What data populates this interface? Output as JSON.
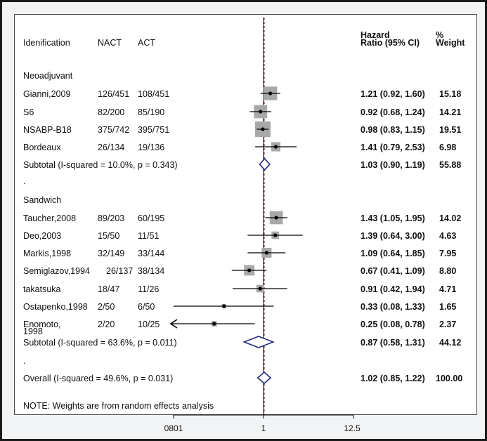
{
  "headers": {
    "study": "Idenification",
    "nact": "NACT",
    "act": "ACT",
    "hr_line1": "Hazard",
    "hr_line2": "Ratio (95% CI)",
    "w_line1": "%",
    "w_line2": "Weight"
  },
  "groups": {
    "neo": "Neoadjuvant",
    "sand": "Sandwich"
  },
  "footnote": "NOTE: Weights are from random effects analysis",
  "subgroup_markers": {
    "neo": ".",
    "sand": "."
  },
  "colors": {
    "point": "#000000",
    "box": "#a8a8a8",
    "diamond": "#1f2a7a",
    "ref": "#7a1f1f"
  },
  "chart_data": {
    "type": "forest",
    "title": "",
    "xscale": "log",
    "xlim": [
      0.0801,
      12.5
    ],
    "xticks": [
      "0801",
      "1",
      "12.5"
    ],
    "reference_line": 1,
    "rows": [
      {
        "study": "Gianni,2009",
        "nact": "126/451",
        "act": "108/451",
        "hr": 1.21,
        "lo": 0.92,
        "hi": 1.6,
        "ci_text": "1.21 (0.92, 1.60)",
        "weight": 15.18,
        "weight_text": "15.18",
        "group": "Neoadjuvant"
      },
      {
        "study": "S6",
        "nact": "82/200",
        "act": "85/190",
        "hr": 0.92,
        "lo": 0.68,
        "hi": 1.24,
        "ci_text": "0.92 (0.68, 1.24)",
        "weight": 14.21,
        "weight_text": "14.21",
        "group": "Neoadjuvant"
      },
      {
        "study": "NSABP-B18",
        "nact": "375/742",
        "act": "395/751",
        "hr": 0.98,
        "lo": 0.83,
        "hi": 1.15,
        "ci_text": "0.98 (0.83, 1.15)",
        "weight": 19.51,
        "weight_text": "19.51",
        "group": "Neoadjuvant"
      },
      {
        "study": "Bordeaux",
        "nact": "26/134",
        "act": "19/136",
        "hr": 1.41,
        "lo": 0.79,
        "hi": 2.53,
        "ci_text": "1.41 (0.79, 2.53)",
        "weight": 6.98,
        "weight_text": "6.98",
        "group": "Neoadjuvant"
      },
      {
        "study": "Taucher,2008",
        "nact": "89/203",
        "act": "60/195",
        "hr": 1.43,
        "lo": 1.05,
        "hi": 1.95,
        "ci_text": "1.43 (1.05, 1.95)",
        "weight": 14.02,
        "weight_text": "14.02",
        "group": "Sandwich"
      },
      {
        "study": "Deo,2003",
        "nact": "15/50",
        "act": "11/51",
        "hr": 1.39,
        "lo": 0.64,
        "hi": 3.0,
        "ci_text": "1.39 (0.64, 3.00)",
        "weight": 4.63,
        "weight_text": "4.63",
        "group": "Sandwich"
      },
      {
        "study": "Markis,1998",
        "nact": "32/149",
        "act": "33/144",
        "hr": 1.09,
        "lo": 0.64,
        "hi": 1.85,
        "ci_text": "1.09 (0.64, 1.85)",
        "weight": 7.95,
        "weight_text": "7.95",
        "group": "Sandwich"
      },
      {
        "study": "Semiglazov,1994",
        "nact": "26/137",
        "act": "38/134",
        "hr": 0.67,
        "lo": 0.41,
        "hi": 1.09,
        "ci_text": "0.67 (0.41, 1.09)",
        "weight": 8.8,
        "weight_text": "8.80",
        "group": "Sandwich"
      },
      {
        "study": "takatsuka",
        "nact": "18/47",
        "act": "11/26",
        "hr": 0.91,
        "lo": 0.42,
        "hi": 1.94,
        "ci_text": "0.91 (0.42, 1.94)",
        "weight": 4.71,
        "weight_text": "4.71",
        "group": "Sandwich"
      },
      {
        "study": "Ostapenko,1998",
        "nact": "2/50",
        "act": "6/50",
        "hr": 0.33,
        "lo": 0.08,
        "hi": 1.33,
        "ci_text": "0.33 (0.08, 1.33)",
        "weight": 1.65,
        "weight_text": "1.65",
        "group": "Sandwich"
      },
      {
        "study": "Enomoto,",
        "study_line2": "1998",
        "nact": "2/20",
        "act": "10/25",
        "hr": 0.25,
        "lo": 0.08,
        "hi": 0.78,
        "ci_text": "0.25 (0.08, 0.78)",
        "weight": 2.37,
        "weight_text": "2.37",
        "group": "Sandwich",
        "arrow_left": true
      }
    ],
    "subtotals": [
      {
        "label": "Subtotal  (I-squared = 10.0%, p = 0.343)",
        "hr": 1.03,
        "lo": 0.9,
        "hi": 1.19,
        "ci_text": "1.03 (0.90, 1.19)",
        "weight_text": "55.88"
      },
      {
        "label": "Subtotal  (I-squared = 63.6%, p = 0.011)",
        "hr": 0.87,
        "lo": 0.58,
        "hi": 1.31,
        "ci_text": "0.87 (0.58, 1.31)",
        "weight_text": "44.12"
      }
    ],
    "overall": {
      "label": "Overall  (I-squared = 49.6%, p = 0.031)",
      "hr": 1.02,
      "lo": 0.85,
      "hi": 1.22,
      "ci_text": "1.02 (0.85, 1.22)",
      "weight_text": "100.00"
    }
  }
}
